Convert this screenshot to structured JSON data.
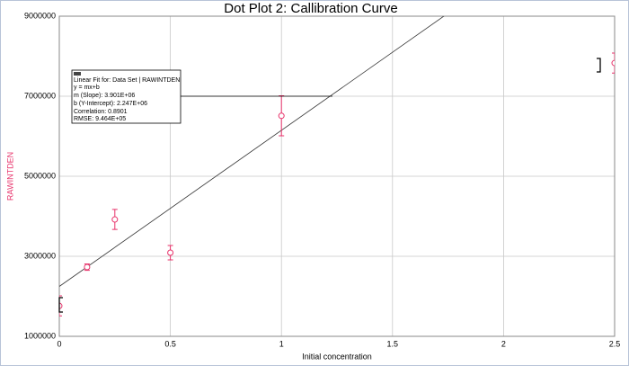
{
  "chart_data": {
    "type": "scatter",
    "title": "Dot Plot 2: Callibration Curve",
    "x_label": "Initial concentration",
    "y_label": "RAWINTDEN",
    "xlim": [
      0,
      2.5
    ],
    "ylim": [
      1000000,
      9000000
    ],
    "xticks": [
      0,
      0.5,
      1,
      1.5,
      2,
      2.5
    ],
    "yticks": [
      1000000,
      3000000,
      5000000,
      7000000,
      9000000
    ],
    "grid": true,
    "series": [
      {
        "name": "RAWINTDEN",
        "color": "#e8336b",
        "x": [
          0,
          0.125,
          0.25,
          0.5,
          1,
          2.5
        ],
        "values": [
          1760000,
          2730000,
          3920000,
          3090000,
          6510000,
          7830000
        ],
        "errors": [
          250000,
          80000,
          250000,
          180000,
          500000,
          250000
        ]
      }
    ],
    "fit": {
      "title": "Linear Fit for: Data Set | RAWINTDEN",
      "equation": "y = mx+b",
      "slope": {
        "name": "m (Slope):",
        "value": 3901000,
        "label": "3.901E+06"
      },
      "intercept": {
        "name": "b (Y-Intercept):",
        "value": 2247000,
        "label": "2.247E+06"
      },
      "correlation": {
        "name": "Correlation:",
        "value": 0.8901
      },
      "rmse": {
        "name": "RMSE:",
        "value": 946400,
        "label": "9.464E+05"
      }
    }
  }
}
